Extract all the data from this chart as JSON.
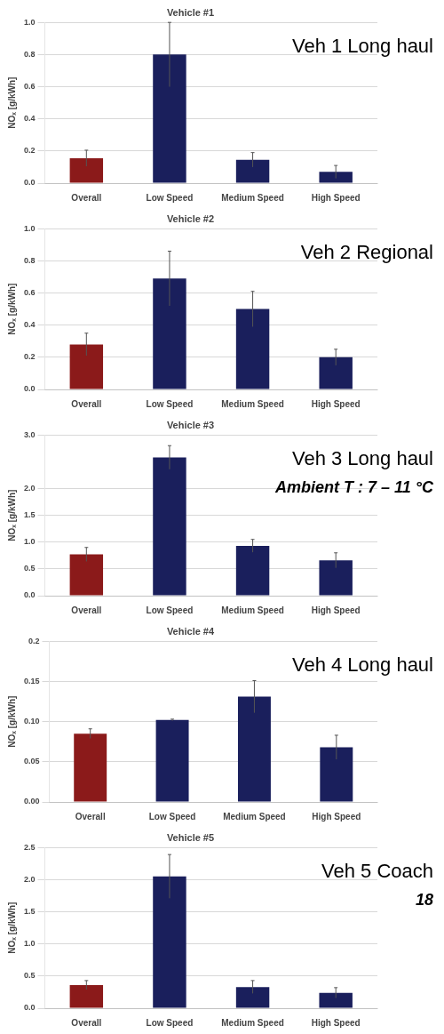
{
  "chart_data": [
    {
      "type": "bar",
      "title": "Vehicle #1",
      "ylabel": "NOₓ [g/kWh]",
      "categories": [
        "Overall",
        "Low Speed",
        "Medium Speed",
        "High Speed"
      ],
      "values": [
        0.155,
        0.8,
        0.145,
        0.07
      ],
      "colors": [
        "#8b1a1a",
        "#1a1f5c",
        "#1a1f5c",
        "#1a1f5c"
      ],
      "errors": [
        0.05,
        0.2,
        0.045,
        0.04
      ],
      "ylim": [
        0,
        1.0
      ],
      "yticks": [
        {
          "value": 0,
          "label": "0.0"
        },
        {
          "value": 0.2,
          "label": "0.2"
        },
        {
          "value": 0.4,
          "label": "0.4"
        },
        {
          "value": 0.6,
          "label": "0.6"
        },
        {
          "value": 0.8,
          "label": "0.8"
        },
        {
          "value": 1.0,
          "label": "1.0"
        }
      ],
      "grid": "y",
      "annotations": [
        "Veh 1 Long haul"
      ]
    },
    {
      "type": "bar",
      "title": "Vehicle #2",
      "ylabel": "NOₓ [g/kWh]",
      "categories": [
        "Overall",
        "Low Speed",
        "Medium Speed",
        "High Speed"
      ],
      "values": [
        0.28,
        0.69,
        0.5,
        0.2
      ],
      "colors": [
        "#8b1a1a",
        "#1a1f5c",
        "#1a1f5c",
        "#1a1f5c"
      ],
      "errors": [
        0.07,
        0.17,
        0.11,
        0.05
      ],
      "ylim": [
        0,
        1.0
      ],
      "yticks": [
        {
          "value": 0,
          "label": "0.0"
        },
        {
          "value": 0.2,
          "label": "0.2"
        },
        {
          "value": 0.4,
          "label": "0.4"
        },
        {
          "value": 0.6,
          "label": "0.6"
        },
        {
          "value": 0.8,
          "label": "0.8"
        },
        {
          "value": 1.0,
          "label": "1.0"
        }
      ],
      "grid": "y",
      "annotations": [
        "Veh 2 Regional"
      ]
    },
    {
      "type": "bar",
      "title": "Vehicle #3",
      "ylabel": "NOₓ [g/kWh]",
      "categories": [
        "Overall",
        "Low Speed",
        "Medium Speed",
        "High Speed"
      ],
      "values": [
        0.77,
        2.58,
        0.93,
        0.66
      ],
      "colors": [
        "#8b1a1a",
        "#1a1f5c",
        "#1a1f5c",
        "#1a1f5c"
      ],
      "errors": [
        0.13,
        0.22,
        0.12,
        0.14
      ],
      "ylim": [
        0,
        3.0
      ],
      "yticks": [
        {
          "value": 0,
          "label": "0.0"
        },
        {
          "value": 0.5,
          "label": "0.5"
        },
        {
          "value": 1.0,
          "label": "1.0"
        },
        {
          "value": 1.5,
          "label": "1.5"
        },
        {
          "value": 2.0,
          "label": "2.0"
        },
        {
          "value": 3.0,
          "label": "3.0"
        }
      ],
      "grid": "y",
      "annotations": [
        "Veh 3 Long haul",
        "Ambient T : 7 – 11 °C"
      ]
    },
    {
      "type": "bar",
      "title": "Vehicle #4",
      "ylabel": "NOₓ [g/kWh]",
      "categories": [
        "Overall",
        "Low Speed",
        "Medium Speed",
        "High Speed"
      ],
      "values": [
        0.085,
        0.102,
        0.131,
        0.068
      ],
      "colors": [
        "#8b1a1a",
        "#1a1f5c",
        "#1a1f5c",
        "#1a1f5c"
      ],
      "errors": [
        0.006,
        0.001,
        0.02,
        0.015
      ],
      "ylim": [
        0,
        0.2
      ],
      "yticks": [
        {
          "value": 0,
          "label": "0.00"
        },
        {
          "value": 0.05,
          "label": "0.05"
        },
        {
          "value": 0.1,
          "label": "0.10"
        },
        {
          "value": 0.15,
          "label": "0.15"
        },
        {
          "value": 0.2,
          "label": "0.2"
        }
      ],
      "grid": "y",
      "annotations": [
        "Veh 4 Long haul"
      ]
    },
    {
      "type": "bar",
      "title": "Vehicle #5",
      "ylabel": "NOₓ [g/kWh]",
      "categories": [
        "Overall",
        "Low Speed",
        "Medium Speed",
        "High Speed"
      ],
      "values": [
        0.36,
        2.05,
        0.33,
        0.24
      ],
      "colors": [
        "#8b1a1a",
        "#1a1f5c",
        "#1a1f5c",
        "#1a1f5c"
      ],
      "errors": [
        0.07,
        0.34,
        0.1,
        0.08
      ],
      "ylim": [
        0,
        2.5
      ],
      "yticks": [
        {
          "value": 0,
          "label": "0.0"
        },
        {
          "value": 0.5,
          "label": "0.5"
        },
        {
          "value": 1.0,
          "label": "1.0"
        },
        {
          "value": 1.5,
          "label": "1.5"
        },
        {
          "value": 2.0,
          "label": "2.0"
        },
        {
          "value": 2.5,
          "label": "2.5"
        }
      ],
      "grid": "y",
      "annotations": [
        "Veh 5 Coach",
        "18"
      ]
    }
  ]
}
